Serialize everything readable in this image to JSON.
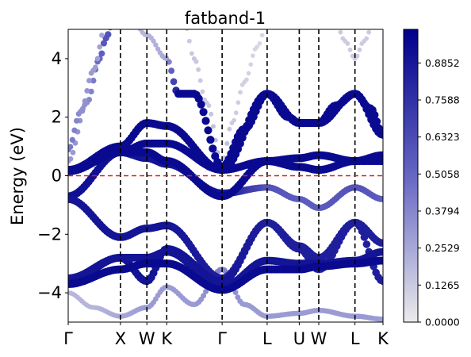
{
  "chart_data": {
    "type": "scatter",
    "title": "fatband-1",
    "xlabel": "",
    "ylabel": "Energy (eV)",
    "ylim": [
      -5,
      5
    ],
    "yticks": [
      -4,
      -2,
      0,
      2,
      4
    ],
    "ytick_labels": [
      "−4",
      "−2",
      "0",
      "2",
      "4"
    ],
    "xlim": [
      0,
      100
    ],
    "kpath": [
      {
        "label": "Γ",
        "x": 0
      },
      {
        "label": "X",
        "x": 16.6
      },
      {
        "label": "W",
        "x": 25.0
      },
      {
        "label": "K",
        "x": 31.3
      },
      {
        "label": "Γ",
        "x": 48.9
      },
      {
        "label": "L",
        "x": 63.2
      },
      {
        "label": "U",
        "x": 73.4
      },
      {
        "label": "W",
        "x": 79.6
      },
      {
        "label": "L",
        "x": 91.1
      },
      {
        "label": "K",
        "x": 100
      }
    ],
    "fermi_level": 0,
    "fermi_color": "#e31a1c",
    "colorbar": {
      "ticks": [
        "0.0000",
        "0.1265",
        "0.2529",
        "0.3794",
        "0.5058",
        "0.6323",
        "0.7588",
        "0.8852"
      ],
      "min": 0,
      "max": 1.0,
      "low_color": "#ebebeb",
      "high_color": "#00008b"
    },
    "bands": [
      {
        "x": [
          0,
          16.6,
          25,
          31.3,
          48.9,
          63.2,
          73.4,
          79.6,
          91.1,
          100
        ],
        "y": [
          -3.7,
          -3.2,
          -3.0,
          -3.0,
          -3.9,
          -3.2,
          -3.2,
          -3.1,
          -3.0,
          -2.9
        ],
        "w": [
          0.95,
          0.95,
          0.95,
          0.95,
          0.95,
          0.95,
          0.95,
          0.95,
          0.95,
          0.95
        ]
      },
      {
        "x": [
          0,
          16.6,
          25,
          31.3,
          48.9,
          63.2,
          73.4,
          79.6,
          91.1,
          100
        ],
        "y": [
          -3.6,
          -2.8,
          -2.8,
          -2.6,
          -3.8,
          -2.9,
          -3.0,
          -3.0,
          -2.9,
          -2.6
        ],
        "w": [
          0.9,
          0.9,
          0.9,
          0.9,
          0.9,
          0.9,
          0.9,
          0.9,
          0.9,
          0.9
        ]
      },
      {
        "x": [
          0,
          16.6,
          25,
          31.3,
          48.9,
          63.2,
          73.4,
          79.6,
          91.1,
          100
        ],
        "y": [
          -3.5,
          -2.8,
          -3.6,
          -2.5,
          -3.6,
          -1.6,
          -2.4,
          -2.8,
          -1.6,
          -2.3
        ],
        "w": [
          0.88,
          0.92,
          0.9,
          0.9,
          0.9,
          0.85,
          0.85,
          0.85,
          0.85,
          0.85
        ]
      },
      {
        "x": [
          0,
          16.6,
          25,
          31.3,
          48.9,
          63.2,
          73.4,
          79.6,
          91.1,
          100
        ],
        "y": [
          -0.8,
          -2.1,
          -1.8,
          -1.7,
          -3.5,
          -1.6,
          -2.5,
          -3.2,
          -1.6,
          -3.6
        ],
        "w": [
          0.9,
          0.9,
          0.9,
          0.9,
          0.85,
          0.85,
          0.85,
          0.85,
          0.85,
          0.85
        ]
      },
      {
        "x": [
          0,
          16.6,
          25,
          31.3,
          48.9,
          63.2,
          73.4,
          79.6,
          91.1,
          100
        ],
        "y": [
          -0.7,
          0.8,
          0.6,
          0.4,
          -0.6,
          -0.4,
          -0.8,
          -1.1,
          -0.4,
          -0.8
        ],
        "w": [
          0.92,
          0.92,
          0.9,
          0.9,
          0.9,
          0.6,
          0.55,
          0.55,
          0.6,
          0.55
        ]
      },
      {
        "x": [
          0,
          16.6,
          25,
          31.3,
          48.9,
          63.2,
          73.4,
          79.6,
          91.1,
          100
        ],
        "y": [
          0.15,
          0.8,
          0.8,
          0.5,
          -0.7,
          0.5,
          0.3,
          0.2,
          0.5,
          0.5
        ],
        "w": [
          0.95,
          0.95,
          0.95,
          0.95,
          0.95,
          0.95,
          0.95,
          0.95,
          0.95,
          0.95
        ]
      },
      {
        "x": [
          0,
          16.6,
          25,
          31.3,
          48.9,
          63.2,
          73.4,
          79.6,
          91.1,
          100
        ],
        "y": [
          0.2,
          0.8,
          1.1,
          1.1,
          0.2,
          0.5,
          0.6,
          0.7,
          0.5,
          0.7
        ],
        "w": [
          0.95,
          0.95,
          0.95,
          0.95,
          0.95,
          0.95,
          0.95,
          0.95,
          0.95,
          0.95
        ]
      },
      {
        "x": [
          0,
          16.6,
          25,
          31.3,
          48.9,
          63.2,
          73.4,
          79.6,
          91.1,
          100
        ],
        "y": [
          0.2,
          1.0,
          1.8,
          1.7,
          0.2,
          2.8,
          1.8,
          1.8,
          2.8,
          1.4
        ],
        "w": [
          0.95,
          0.95,
          0.95,
          0.95,
          0.95,
          0.95,
          0.95,
          0.95,
          0.95,
          0.95
        ]
      },
      {
        "x": [
          0,
          4,
          8,
          12,
          16.6,
          25,
          31.3,
          35,
          40,
          48.9,
          56,
          63.2,
          70,
          73.4,
          79.6,
          85,
          91.1,
          96,
          100
        ],
        "y": [
          0.9,
          2.2,
          3.6,
          5.2,
          6.2,
          4.8,
          4.0,
          2.8,
          2.8,
          0.3,
          1.6,
          2.8,
          2.0,
          1.8,
          1.8,
          2.4,
          2.8,
          2.3,
          1.4
        ],
        "w": [
          0.45,
          0.35,
          0.3,
          0.25,
          0.2,
          0.2,
          0.25,
          0.95,
          0.95,
          0.95,
          0.95,
          0.95,
          0.95,
          0.95,
          0.95,
          0.95,
          0.95,
          0.95,
          0.95
        ]
      },
      {
        "x": [
          0,
          6,
          10,
          12,
          14
        ],
        "y": [
          0.5,
          2.5,
          4.0,
          4.7,
          5.2
        ],
        "w": [
          0.3,
          0.35,
          0.5,
          0.6,
          0.6
        ]
      },
      {
        "x": [
          37,
          40,
          44,
          48.9,
          52,
          56,
          60,
          63.2
        ],
        "y": [
          5.2,
          4.0,
          2.5,
          0.4,
          1.8,
          3.2,
          4.4,
          5.2
        ],
        "w": [
          0.12,
          0.14,
          0.12,
          0.2,
          0.12,
          0.1,
          0.08,
          0.08
        ]
      },
      {
        "x": [
          85,
          88,
          91.1,
          94,
          97
        ],
        "y": [
          5.2,
          4.6,
          4.0,
          4.6,
          5.2
        ],
        "w": [
          0.12,
          0.12,
          0.12,
          0.12,
          0.12
        ]
      },
      {
        "x": [
          0,
          8,
          16.6,
          25,
          31.3,
          40,
          48.9,
          56,
          63.2,
          73.4,
          79.6,
          91.1,
          100
        ],
        "y": [
          -4.0,
          -4.5,
          -4.8,
          -4.5,
          -3.8,
          -4.4,
          -3.2,
          -4.4,
          -4.8,
          -4.7,
          -4.6,
          -4.8,
          -4.9
        ],
        "w": [
          0.2,
          0.2,
          0.25,
          0.3,
          0.3,
          0.3,
          0.4,
          0.3,
          0.3,
          0.3,
          0.3,
          0.3,
          0.3
        ]
      }
    ]
  }
}
